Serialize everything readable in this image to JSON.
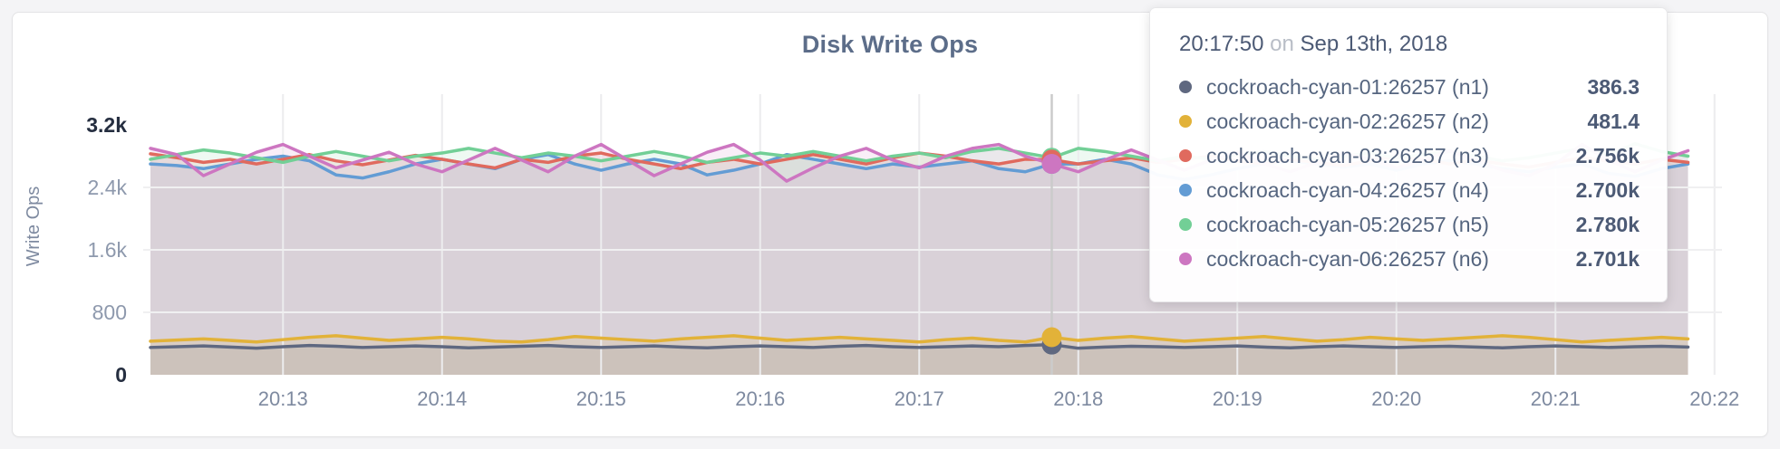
{
  "page": {
    "background": "#f4f4f6"
  },
  "card": {
    "title": "Disk Write Ops"
  },
  "chart": {
    "ylabel": "Write Ops",
    "y_ticks": [
      "0",
      "800",
      "1.6k",
      "2.4k",
      "3.2k"
    ],
    "x_ticks": [
      "20:13",
      "20:14",
      "20:15",
      "20:16",
      "20:17",
      "20:18",
      "20:19",
      "20:20",
      "20:21",
      "20:22"
    ]
  },
  "tooltip": {
    "time": "20:17:50",
    "preposition": "on",
    "date": "Sep 13th, 2018",
    "rows": [
      {
        "label": "cockroach-cyan-01:26257 (n1)",
        "value": "386.3",
        "color": "#5f6880"
      },
      {
        "label": "cockroach-cyan-02:26257 (n2)",
        "value": "481.4",
        "color": "#e2b239"
      },
      {
        "label": "cockroach-cyan-03:26257 (n3)",
        "value": "2.756k",
        "color": "#e06a5e"
      },
      {
        "label": "cockroach-cyan-04:26257 (n4)",
        "value": "2.700k",
        "color": "#639cd4"
      },
      {
        "label": "cockroach-cyan-05:26257 (n5)",
        "value": "2.780k",
        "color": "#72cf96"
      },
      {
        "label": "cockroach-cyan-06:26257 (n6)",
        "value": "2.701k",
        "color": "#cd76c1"
      }
    ]
  },
  "chart_data": {
    "type": "line",
    "style": "lines-with-translucent-area-fill",
    "title": "Disk Write Ops",
    "ylabel": "Write Ops",
    "ylim": [
      0,
      3200
    ],
    "grid": true,
    "legend": "hover-tooltip-only",
    "x_start": "20:12:10",
    "x_interval_seconds": 10,
    "x_tick_labels": [
      "20:13",
      "20:14",
      "20:15",
      "20:16",
      "20:17",
      "20:18",
      "20:19",
      "20:20",
      "20:21",
      "20:22"
    ],
    "y_tick_values": [
      0,
      800,
      1600,
      2400,
      3200
    ],
    "y_tick_labels": [
      "0",
      "800",
      "1.6k",
      "2.4k",
      "3.2k"
    ],
    "hover_time": "20:17:50",
    "hover_date": "Sep 13th, 2018",
    "hover_index": 34,
    "series": [
      {
        "name": "cockroach-cyan-01:26257 (n1)",
        "color": "#5f6880",
        "hover_value": 386.3,
        "values": [
          350,
          360,
          370,
          355,
          340,
          360,
          375,
          365,
          350,
          360,
          370,
          360,
          345,
          355,
          365,
          375,
          360,
          350,
          360,
          370,
          355,
          345,
          360,
          370,
          360,
          350,
          365,
          375,
          360,
          350,
          360,
          370,
          360,
          375,
          386.3,
          340,
          355,
          365,
          360,
          350,
          360,
          370,
          355,
          345,
          360,
          370,
          360,
          350,
          360,
          365,
          355,
          345,
          360,
          370,
          360,
          350,
          360,
          365,
          355
        ]
      },
      {
        "name": "cockroach-cyan-02:26257 (n2)",
        "color": "#e2b239",
        "hover_value": 481.4,
        "values": [
          430,
          445,
          460,
          440,
          420,
          450,
          480,
          500,
          470,
          440,
          460,
          480,
          460,
          430,
          420,
          450,
          490,
          470,
          450,
          430,
          460,
          480,
          500,
          470,
          440,
          460,
          480,
          460,
          440,
          420,
          450,
          470,
          440,
          420,
          481.4,
          440,
          470,
          490,
          460,
          430,
          450,
          470,
          490,
          460,
          430,
          450,
          480,
          460,
          440,
          460,
          480,
          500,
          480,
          450,
          420,
          440,
          460,
          480,
          460
        ]
      },
      {
        "name": "cockroach-cyan-03:26257 (n3)",
        "color": "#e06a5e",
        "hover_value": 2756,
        "values": [
          2830,
          2780,
          2720,
          2760,
          2700,
          2760,
          2820,
          2740,
          2690,
          2750,
          2810,
          2760,
          2700,
          2650,
          2760,
          2720,
          2800,
          2840,
          2760,
          2700,
          2640,
          2720,
          2760,
          2700,
          2760,
          2820,
          2760,
          2700,
          2780,
          2840,
          2800,
          2740,
          2700,
          2760,
          2756,
          2700,
          2740,
          2780,
          2720,
          2760,
          2800,
          2740,
          2700,
          2760,
          2720,
          2680,
          2740,
          2800,
          2760,
          2700,
          2750,
          2700,
          2660,
          2720,
          2780,
          2740,
          2700,
          2760,
          2720
        ]
      },
      {
        "name": "cockroach-cyan-04:26257 (n4)",
        "color": "#639cd4",
        "hover_value": 2700,
        "values": [
          2700,
          2680,
          2640,
          2700,
          2760,
          2800,
          2740,
          2560,
          2520,
          2600,
          2700,
          2760,
          2700,
          2640,
          2760,
          2820,
          2700,
          2620,
          2700,
          2760,
          2700,
          2560,
          2620,
          2700,
          2820,
          2760,
          2700,
          2640,
          2700,
          2660,
          2700,
          2740,
          2640,
          2600,
          2700,
          2700,
          2760,
          2700,
          2560,
          2500,
          2560,
          2640,
          2700,
          2740,
          2700,
          2660,
          2700,
          2620,
          2700,
          2740,
          2700,
          2640,
          2600,
          2660,
          2700,
          2580,
          2540,
          2640,
          2700
        ]
      },
      {
        "name": "cockroach-cyan-05:26257 (n5)",
        "color": "#72cf96",
        "hover_value": 2780,
        "values": [
          2760,
          2820,
          2880,
          2840,
          2780,
          2720,
          2800,
          2860,
          2800,
          2740,
          2800,
          2840,
          2900,
          2840,
          2780,
          2840,
          2800,
          2740,
          2800,
          2860,
          2800,
          2720,
          2780,
          2840,
          2800,
          2860,
          2800,
          2740,
          2800,
          2840,
          2780,
          2860,
          2900,
          2840,
          2780,
          2900,
          2860,
          2800,
          2740,
          2800,
          2760,
          2820,
          2860,
          2800,
          2760,
          2800,
          2840,
          2780,
          2820,
          2860,
          2800,
          2740,
          2780,
          2840,
          2900,
          2820,
          2960,
          2860,
          2800
        ]
      },
      {
        "name": "cockroach-cyan-06:26257 (n6)",
        "color": "#cd76c1",
        "hover_value": 2701,
        "values": [
          2900,
          2820,
          2550,
          2700,
          2850,
          2950,
          2800,
          2650,
          2750,
          2850,
          2700,
          2600,
          2750,
          2900,
          2750,
          2600,
          2800,
          2950,
          2750,
          2550,
          2700,
          2850,
          2950,
          2750,
          2480,
          2650,
          2800,
          2900,
          2750,
          2650,
          2800,
          2900,
          2950,
          2800,
          2701,
          2600,
          2750,
          2880,
          2750,
          2620,
          2750,
          2850,
          2700,
          2600,
          2720,
          2840,
          2760,
          2650,
          2750,
          2870,
          2750,
          2620,
          2550,
          2700,
          2950,
          2750,
          2600,
          2750,
          2870
        ]
      }
    ]
  }
}
